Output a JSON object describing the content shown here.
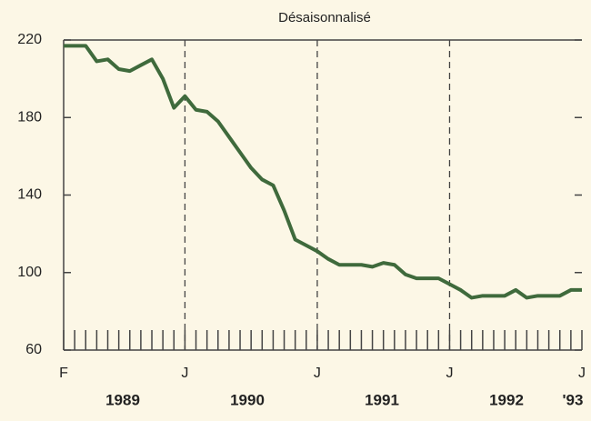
{
  "chart_data": {
    "type": "line",
    "title": "Désaisonnalisé",
    "categories": [
      "F",
      null,
      null,
      null,
      null,
      null,
      null,
      null,
      null,
      null,
      null,
      "J",
      null,
      null,
      null,
      null,
      null,
      null,
      null,
      null,
      null,
      null,
      null,
      "J",
      null,
      null,
      null,
      null,
      null,
      null,
      null,
      null,
      null,
      null,
      null,
      "J",
      null,
      null,
      null,
      null,
      null,
      null,
      null,
      null,
      null,
      null,
      null,
      "J"
    ],
    "year_labels": [
      "1989",
      "1990",
      "1991",
      "1992",
      "'93"
    ],
    "series": [
      {
        "name": null,
        "color": "#3f6a3c",
        "values": [
          217,
          217,
          217,
          209,
          210,
          205,
          204,
          207,
          210,
          200,
          185,
          191,
          184,
          183,
          178,
          170,
          162,
          154,
          148,
          145,
          132,
          117,
          114,
          111,
          107,
          104,
          104,
          104,
          103,
          105,
          104,
          99,
          97,
          97,
          97,
          94,
          91,
          87,
          88,
          88,
          88,
          91,
          87,
          88,
          88,
          88,
          91,
          91
        ]
      }
    ],
    "ylim": [
      60,
      220
    ],
    "yticks": [
      60,
      100,
      140,
      180,
      220
    ]
  }
}
